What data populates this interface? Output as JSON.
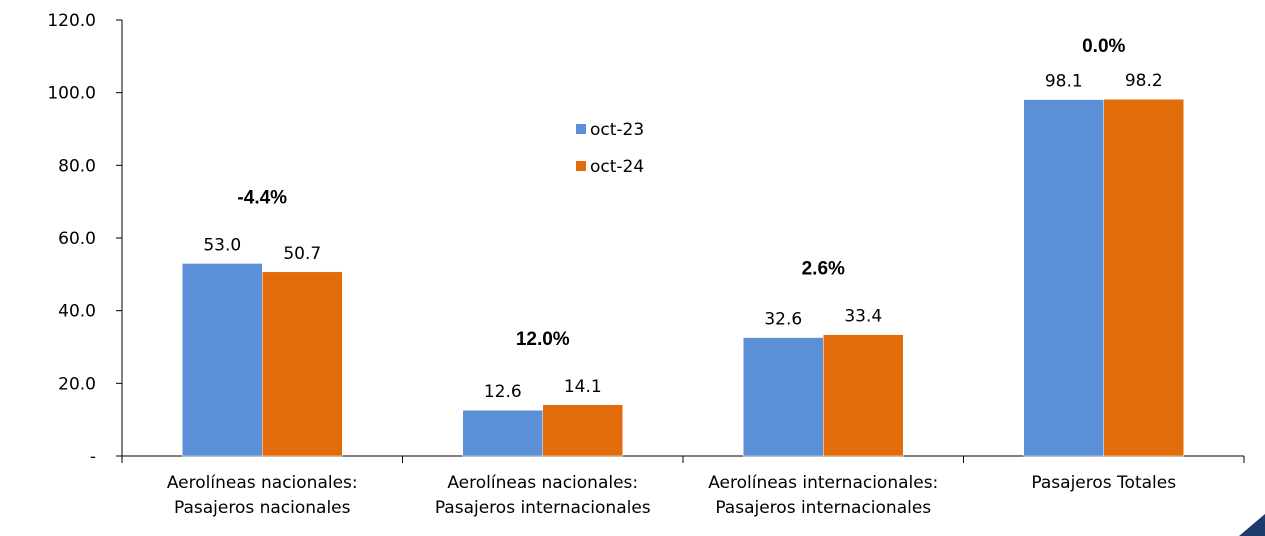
{
  "chart_data": {
    "type": "bar",
    "categories": [
      [
        "Aerolíneas nacionales:",
        "Pasajeros nacionales"
      ],
      [
        "Aerolíneas nacionales:",
        "Pasajeros internacionales"
      ],
      [
        "Aerolíneas internacionales:",
        "Pasajeros internacionales"
      ],
      [
        "Pasajeros Totales"
      ]
    ],
    "series": [
      {
        "name": "oct-23",
        "color": "#5b8fd6",
        "values": [
          53.0,
          12.6,
          32.6,
          98.1
        ],
        "labels": [
          "53.0",
          "12.6",
          "32.6",
          "98.1"
        ]
      },
      {
        "name": "oct-24",
        "color": "#e36c0a",
        "values": [
          50.7,
          14.1,
          33.4,
          98.2
        ],
        "labels": [
          "50.7",
          "14.1",
          "33.4",
          "98.2"
        ]
      }
    ],
    "changes": [
      "-4.4%",
      "12.0%",
      "2.6%",
      "0.0%"
    ],
    "y_ticks": [
      "-",
      "20.0",
      "40.0",
      "60.0",
      "80.0",
      "100.0",
      "120.0"
    ],
    "ylim": [
      0,
      120
    ],
    "legend_position": "center",
    "grid": false
  }
}
